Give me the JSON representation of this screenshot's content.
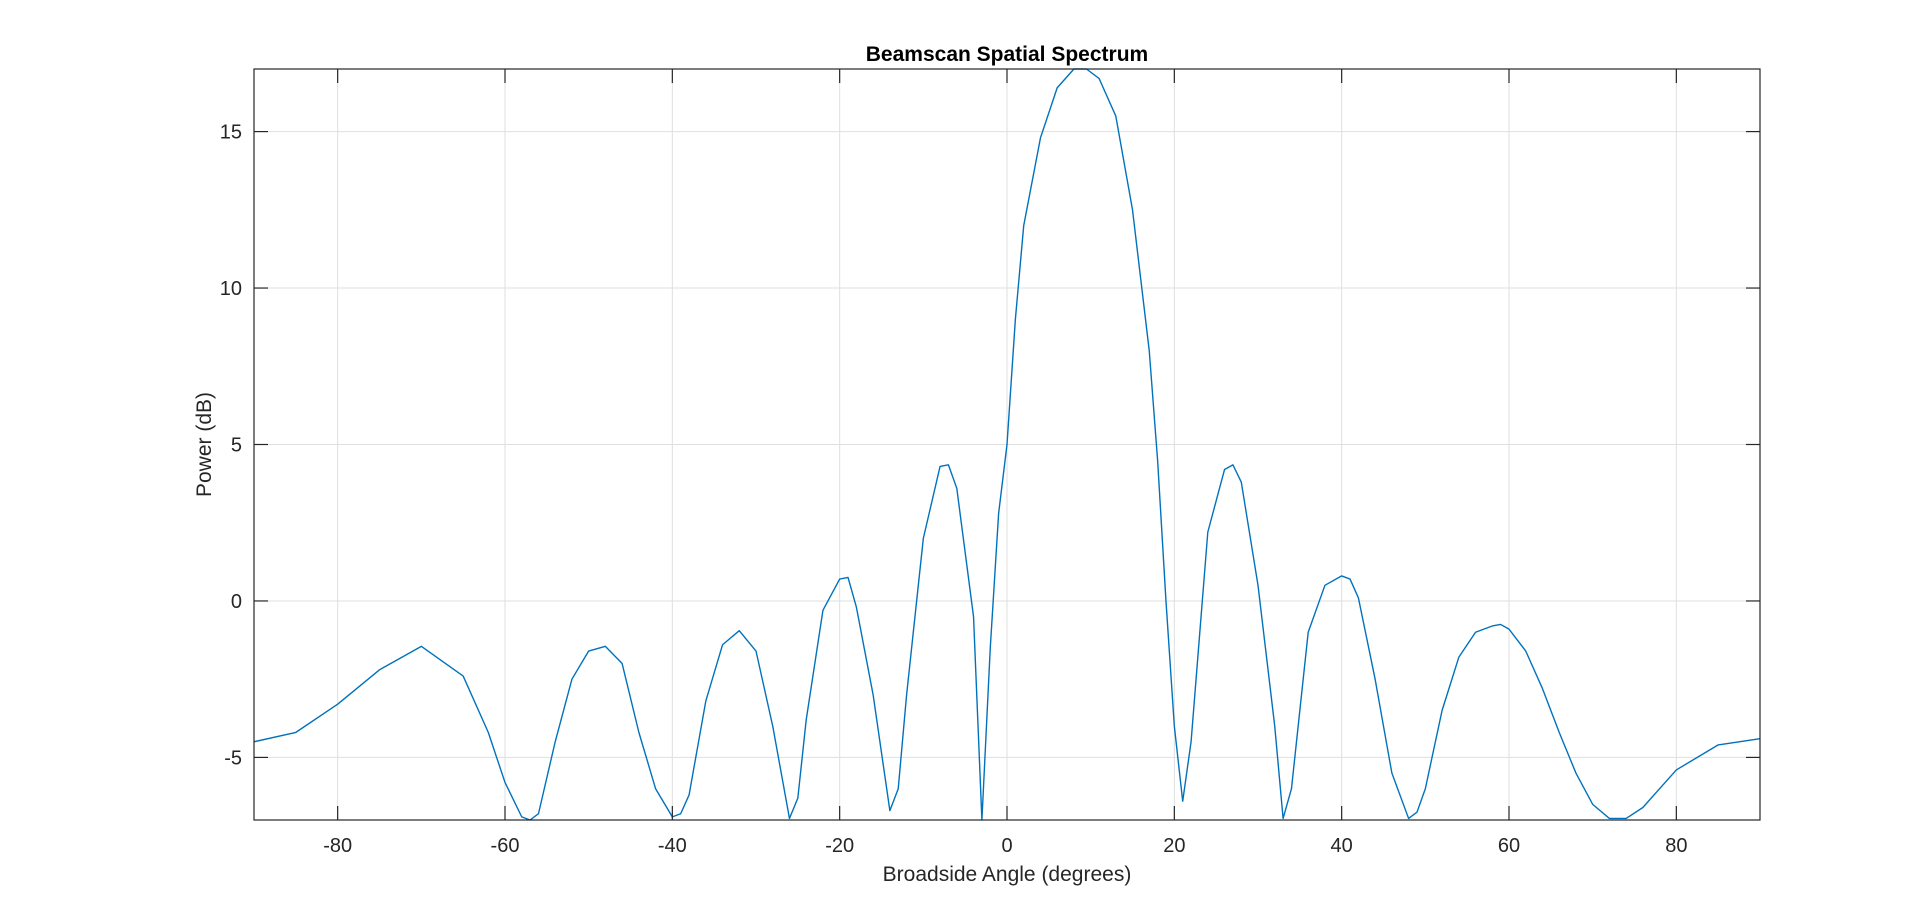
{
  "chart_data": {
    "type": "line",
    "title": "Beamscan Spatial Spectrum",
    "xlabel": "Broadside Angle (degrees)",
    "ylabel": "Power (dB)",
    "xlim": [
      -90,
      90
    ],
    "ylim": [
      -7,
      17
    ],
    "xticks": [
      -80,
      -60,
      -40,
      -20,
      0,
      20,
      40,
      60,
      80
    ],
    "yticks": [
      -5,
      0,
      5,
      10,
      15
    ],
    "grid": true,
    "legend": "none",
    "series": [
      {
        "color": "#0072bd",
        "x": [
          -90,
          -85,
          -80,
          -75,
          -70,
          -65,
          -62,
          -60,
          -58,
          -57,
          -56,
          -54,
          -52,
          -50,
          -48,
          -46,
          -44,
          -42,
          -40,
          -39,
          -38,
          -36,
          -34,
          -32,
          -30,
          -28,
          -26,
          -25,
          -24,
          -22,
          -20,
          -19,
          -18,
          -16,
          -14,
          -13,
          -12,
          -10,
          -8,
          -7,
          -6,
          -4,
          -3,
          -2,
          -1,
          0,
          1,
          2,
          4,
          6,
          8,
          9.5,
          11,
          13,
          15,
          17,
          18,
          19,
          20,
          21,
          22,
          24,
          26,
          27,
          28,
          30,
          32,
          33,
          34,
          36,
          38,
          40,
          41,
          42,
          44,
          46,
          48,
          49,
          50,
          52,
          54,
          56,
          58,
          59,
          60,
          62,
          64,
          66,
          68,
          70,
          72,
          74,
          76,
          78,
          80,
          85,
          90
        ],
        "y": [
          -4.5,
          -4.2,
          -3.3,
          -2.2,
          -1.45,
          -2.4,
          -4.2,
          -5.8,
          -6.9,
          -7.0,
          -6.8,
          -4.5,
          -2.5,
          -1.6,
          -1.45,
          -2.0,
          -4.2,
          -6.0,
          -6.9,
          -6.8,
          -6.2,
          -3.2,
          -1.4,
          -0.95,
          -1.6,
          -4.0,
          -6.95,
          -6.3,
          -3.8,
          -0.3,
          0.7,
          0.75,
          -0.2,
          -3.0,
          -6.7,
          -6.0,
          -3.0,
          2.0,
          4.3,
          4.35,
          3.6,
          -0.5,
          -7.0,
          -1.5,
          2.8,
          5.0,
          9.0,
          12.0,
          14.8,
          16.4,
          17.0,
          17.0,
          16.7,
          15.5,
          12.5,
          8.0,
          4.5,
          0.0,
          -4.0,
          -6.4,
          -4.5,
          2.2,
          4.2,
          4.35,
          3.8,
          0.5,
          -4.0,
          -6.95,
          -6.0,
          -1.0,
          0.5,
          0.8,
          0.7,
          0.1,
          -2.5,
          -5.5,
          -6.95,
          -6.75,
          -6.0,
          -3.5,
          -1.8,
          -1.0,
          -0.8,
          -0.75,
          -0.9,
          -1.6,
          -2.8,
          -4.2,
          -5.5,
          -6.5,
          -6.95,
          -6.95,
          -6.6,
          -6.0,
          -5.4,
          -4.6,
          -4.4
        ]
      }
    ]
  }
}
